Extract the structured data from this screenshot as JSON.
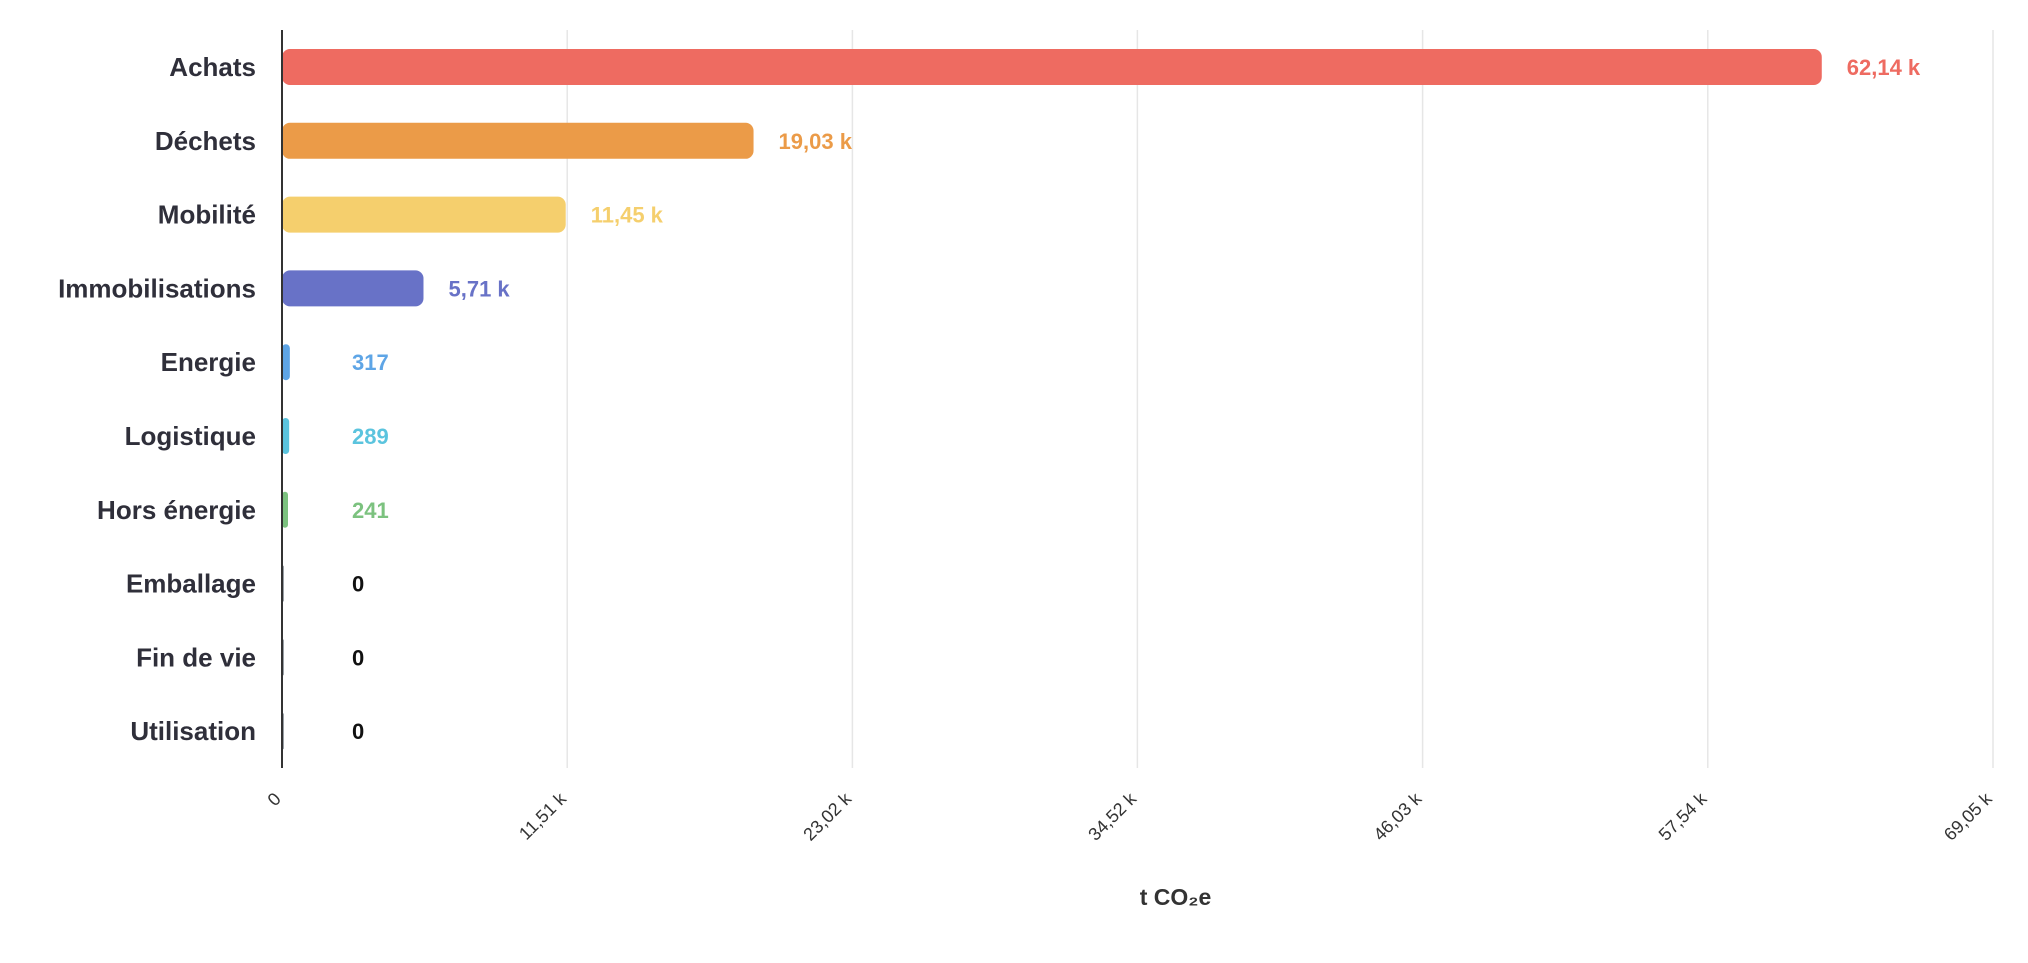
{
  "chart_data": {
    "type": "bar",
    "orientation": "horizontal",
    "categories": [
      "Achats",
      "Déchets",
      "Mobilité",
      "Immobilisations",
      "Energie",
      "Logistique",
      "Hors énergie",
      "Emballage",
      "Fin de vie",
      "Utilisation"
    ],
    "values": [
      62140,
      19030,
      11450,
      5710,
      317,
      289,
      241,
      0,
      0,
      0
    ],
    "value_labels": [
      "62,14 k",
      "19,03 k",
      "11,45 k",
      "5,71 k",
      "317",
      "289",
      "241",
      "0",
      "0",
      "0"
    ],
    "colors": [
      "#ee6b61",
      "#eb9b48",
      "#f5cf6d",
      "#6872c7",
      "#5ea5e6",
      "#5bc4de",
      "#7cc27f",
      "#9aa0a6",
      "#9aa0a6",
      "#9aa0a6"
    ],
    "zero_label_color": "#111111",
    "xlim": [
      0,
      69050
    ],
    "x_ticks": [
      0,
      11510,
      23020,
      34520,
      46030,
      57540,
      69050
    ],
    "x_tick_labels": [
      "0",
      "11,51 k",
      "23,02 k",
      "34,52 k",
      "46,03 k",
      "57,54 k",
      "69,05 k"
    ],
    "xlabel": "t CO₂e",
    "grid": "vertical",
    "title": "",
    "ylabel": ""
  }
}
